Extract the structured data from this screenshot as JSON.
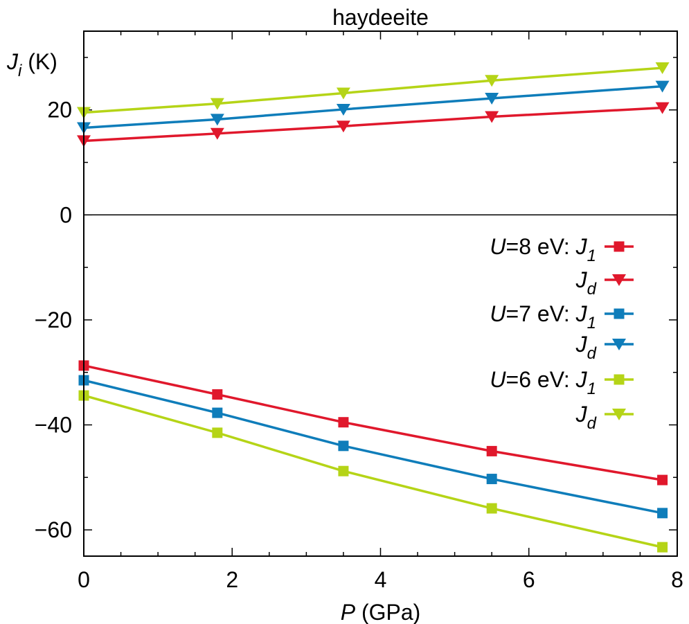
{
  "chart_data": {
    "type": "line",
    "title": "haydeeite",
    "xlabel": {
      "italic": "P",
      "rest": " (GPa)"
    },
    "ylabel": {
      "italic": "J",
      "sub": "i",
      "rest": " (K)"
    },
    "xlim": [
      0,
      8
    ],
    "ylim": [
      -65,
      35
    ],
    "xticks": [
      "0",
      "2",
      "4",
      "6",
      "8"
    ],
    "yticks": [
      "20",
      "0",
      "−20",
      "−40",
      "−60"
    ],
    "x": [
      0,
      1.8,
      3.5,
      5.5,
      7.8
    ],
    "zero_line": true,
    "series": [
      {
        "id": "u8-j1",
        "marker": "square",
        "color": "#e0182c",
        "values": [
          -28.7,
          -34.2,
          -39.5,
          -45.0,
          -50.5
        ]
      },
      {
        "id": "u8-jd",
        "marker": "triangle",
        "color": "#e0182c",
        "values": [
          14.1,
          15.5,
          16.9,
          18.7,
          20.4
        ]
      },
      {
        "id": "u7-j1",
        "marker": "square",
        "color": "#0f7dba",
        "values": [
          -31.5,
          -37.7,
          -44.0,
          -50.3,
          -56.8
        ]
      },
      {
        "id": "u7-jd",
        "marker": "triangle",
        "color": "#0f7dba",
        "values": [
          16.6,
          18.2,
          20.1,
          22.2,
          24.5
        ]
      },
      {
        "id": "u6-j1",
        "marker": "square",
        "color": "#b5d417",
        "values": [
          -34.4,
          -41.5,
          -48.8,
          -55.9,
          -63.3
        ]
      },
      {
        "id": "u6-jd",
        "marker": "triangle",
        "color": "#b5d417",
        "values": [
          19.5,
          21.2,
          23.2,
          25.6,
          28.0
        ]
      }
    ],
    "legend": {
      "placement": "right",
      "entries": [
        {
          "series": "u8-j1",
          "prefix_italic": "U",
          "prefix_rest": "=8 eV: ",
          "sym": "J",
          "sub": "1"
        },
        {
          "series": "u8-jd",
          "prefix_italic": "",
          "prefix_rest": "",
          "sym": "J",
          "sub": "d"
        },
        {
          "series": "u7-j1",
          "prefix_italic": "U",
          "prefix_rest": "=7 eV: ",
          "sym": "J",
          "sub": "1"
        },
        {
          "series": "u7-jd",
          "prefix_italic": "",
          "prefix_rest": "",
          "sym": "J",
          "sub": "d"
        },
        {
          "series": "u6-j1",
          "prefix_italic": "U",
          "prefix_rest": "=6 eV: ",
          "sym": "J",
          "sub": "1"
        },
        {
          "series": "u6-jd",
          "prefix_italic": "",
          "prefix_rest": "",
          "sym": "J",
          "sub": "d"
        }
      ]
    }
  }
}
